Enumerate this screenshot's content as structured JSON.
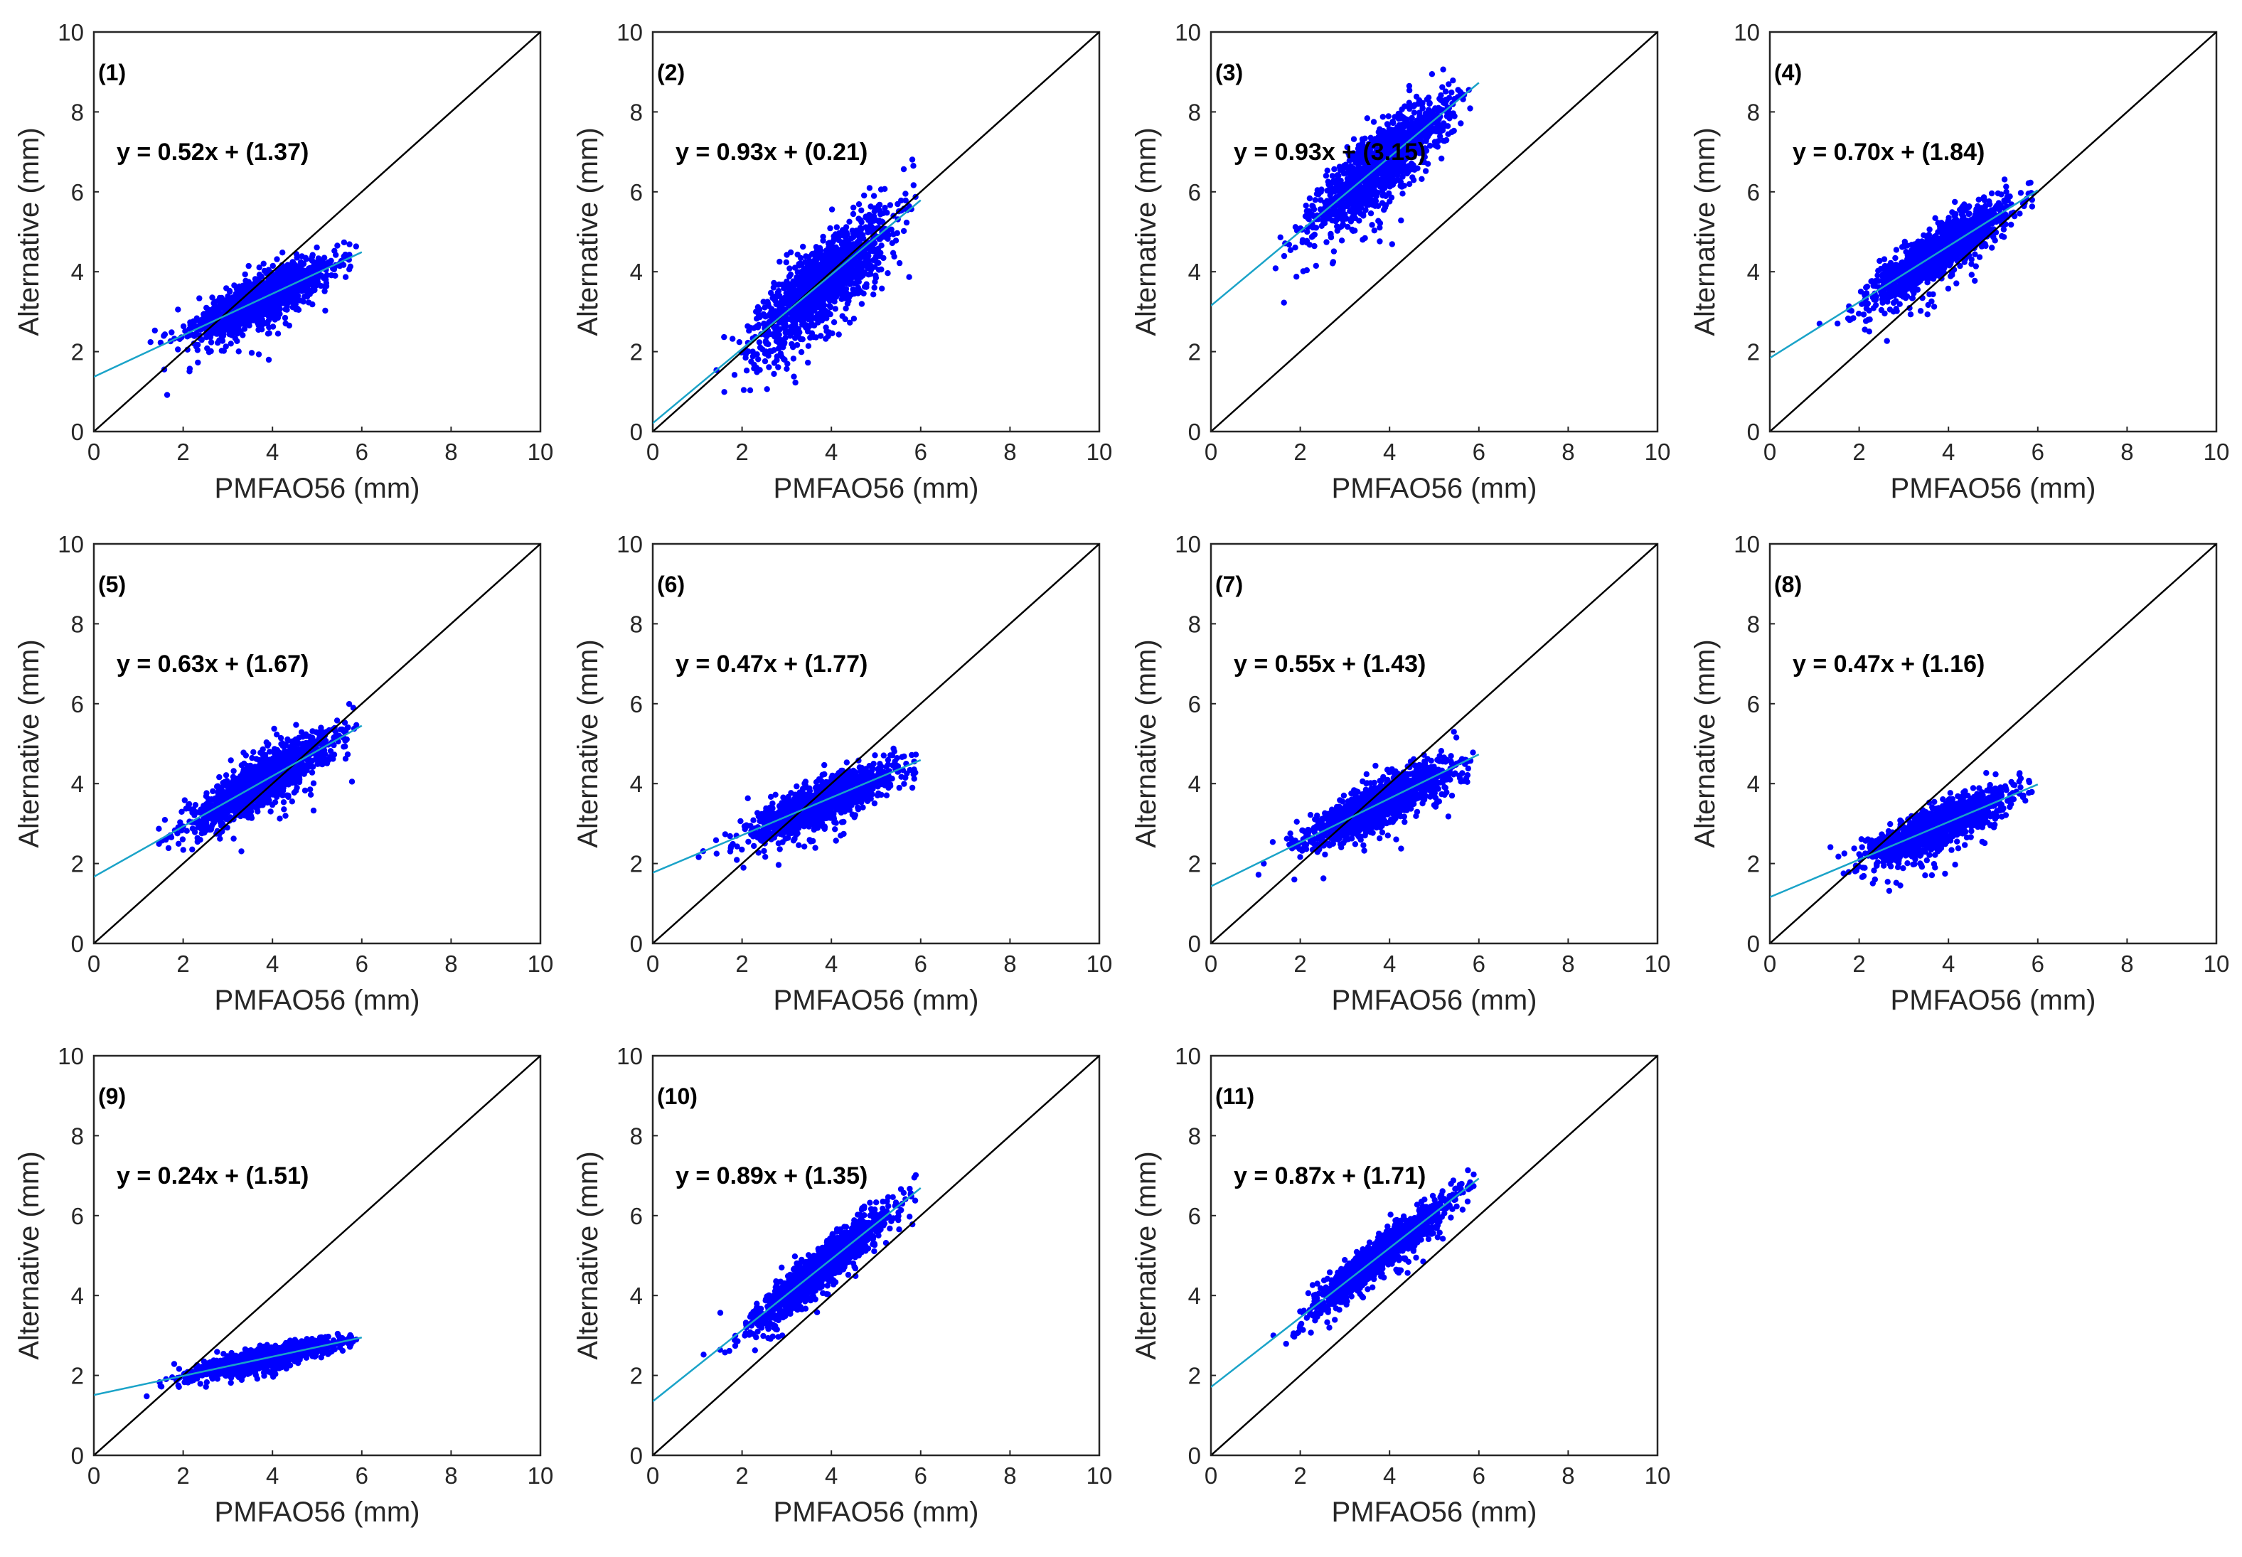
{
  "colors": {
    "points": "#0000ff",
    "fit_line": "#1aa3c8",
    "identity_line": "#000000",
    "axes": "#262626",
    "background": "#ffffff"
  },
  "chart_data": [
    {
      "type": "scatter",
      "panel": "(1)",
      "equation": "y = 0.52x + (1.37)",
      "slope": 0.52,
      "intercept": 1.37,
      "xlabel": "PMFAO56 (mm)",
      "ylabel": "Alternative (mm)",
      "xlim": [
        0,
        10
      ],
      "ylim": [
        0,
        10
      ],
      "xticks": [
        "0",
        "2",
        "4",
        "6",
        "8",
        "10"
      ],
      "yticks": [
        "0",
        "2",
        "4",
        "6",
        "8",
        "10"
      ],
      "cloud": {
        "x_range": [
          1.0,
          5.9
        ],
        "center": [
          3.8,
          3.3
        ],
        "spread": 0.45
      },
      "reference_line": "y = x"
    },
    {
      "type": "scatter",
      "panel": "(2)",
      "equation": "y = 0.93x + (0.21)",
      "slope": 0.93,
      "intercept": 0.21,
      "xlabel": "PMFAO56 (mm)",
      "ylabel": "Alternative (mm)",
      "xlim": [
        0,
        10
      ],
      "ylim": [
        0,
        10
      ],
      "xticks": [
        "0",
        "2",
        "4",
        "6",
        "8",
        "10"
      ],
      "yticks": [
        "0",
        "2",
        "4",
        "6",
        "8",
        "10"
      ],
      "cloud": {
        "x_range": [
          1.0,
          5.9
        ],
        "center": [
          3.8,
          3.7
        ],
        "spread": 0.8
      },
      "reference_line": "y = x"
    },
    {
      "type": "scatter",
      "panel": "(3)",
      "equation": "y = 0.93x + (3.15)",
      "slope": 0.93,
      "intercept": 3.15,
      "xlabel": "PMFAO56 (mm)",
      "ylabel": "Alternative (mm)",
      "xlim": [
        0,
        10
      ],
      "ylim": [
        0,
        10
      ],
      "xticks": [
        "0",
        "2",
        "4",
        "6",
        "8",
        "10"
      ],
      "yticks": [
        "0",
        "2",
        "4",
        "6",
        "8",
        "10"
      ],
      "cloud": {
        "x_range": [
          1.0,
          5.9
        ],
        "center": [
          3.8,
          6.6
        ],
        "spread": 0.7
      },
      "reference_line": "y = x"
    },
    {
      "type": "scatter",
      "panel": "(4)",
      "equation": "y = 0.70x + (1.84)",
      "slope": 0.7,
      "intercept": 1.84,
      "xlabel": "PMFAO56 (mm)",
      "ylabel": "Alternative (mm)",
      "xlim": [
        0,
        10
      ],
      "ylim": [
        0,
        10
      ],
      "xticks": [
        "0",
        "2",
        "4",
        "6",
        "8",
        "10"
      ],
      "yticks": [
        "0",
        "2",
        "4",
        "6",
        "8",
        "10"
      ],
      "cloud": {
        "x_range": [
          1.0,
          5.9
        ],
        "center": [
          3.8,
          4.5
        ],
        "spread": 0.5
      },
      "reference_line": "y = x"
    },
    {
      "type": "scatter",
      "panel": "(5)",
      "equation": "y = 0.63x + (1.67)",
      "slope": 0.63,
      "intercept": 1.67,
      "xlabel": "PMFAO56 (mm)",
      "ylabel": "Alternative (mm)",
      "xlim": [
        0,
        10
      ],
      "ylim": [
        0,
        10
      ],
      "xticks": [
        "0",
        "2",
        "4",
        "6",
        "8",
        "10"
      ],
      "yticks": [
        "0",
        "2",
        "4",
        "6",
        "8",
        "10"
      ],
      "cloud": {
        "x_range": [
          1.0,
          5.9
        ],
        "center": [
          3.8,
          4.0
        ],
        "spread": 0.5
      },
      "reference_line": "y = x"
    },
    {
      "type": "scatter",
      "panel": "(6)",
      "equation": "y = 0.47x + (1.77)",
      "slope": 0.47,
      "intercept": 1.77,
      "xlabel": "PMFAO56 (mm)",
      "ylabel": "Alternative (mm)",
      "xlim": [
        0,
        10
      ],
      "ylim": [
        0,
        10
      ],
      "xticks": [
        "0",
        "2",
        "4",
        "6",
        "8",
        "10"
      ],
      "yticks": [
        "0",
        "2",
        "4",
        "6",
        "8",
        "10"
      ],
      "cloud": {
        "x_range": [
          1.0,
          5.9
        ],
        "center": [
          3.8,
          3.5
        ],
        "spread": 0.4
      },
      "reference_line": "y = x"
    },
    {
      "type": "scatter",
      "panel": "(7)",
      "equation": "y = 0.55x + (1.43)",
      "slope": 0.55,
      "intercept": 1.43,
      "xlabel": "PMFAO56 (mm)",
      "ylabel": "Alternative (mm)",
      "xlim": [
        0,
        10
      ],
      "ylim": [
        0,
        10
      ],
      "xticks": [
        "0",
        "2",
        "4",
        "6",
        "8",
        "10"
      ],
      "yticks": [
        "0",
        "2",
        "4",
        "6",
        "8",
        "10"
      ],
      "cloud": {
        "x_range": [
          1.0,
          5.9
        ],
        "center": [
          3.8,
          3.5
        ],
        "spread": 0.45
      },
      "reference_line": "y = x"
    },
    {
      "type": "scatter",
      "panel": "(8)",
      "equation": "y = 0.47x + (1.16)",
      "slope": 0.47,
      "intercept": 1.16,
      "xlabel": "PMFAO56 (mm)",
      "ylabel": "Alternative (mm)",
      "xlim": [
        0,
        10
      ],
      "ylim": [
        0,
        10
      ],
      "xticks": [
        "0",
        "2",
        "4",
        "6",
        "8",
        "10"
      ],
      "yticks": [
        "0",
        "2",
        "4",
        "6",
        "8",
        "10"
      ],
      "cloud": {
        "x_range": [
          1.0,
          5.9
        ],
        "center": [
          3.8,
          2.9
        ],
        "spread": 0.4
      },
      "reference_line": "y = x"
    },
    {
      "type": "scatter",
      "panel": "(9)",
      "equation": "y = 0.24x + (1.51)",
      "slope": 0.24,
      "intercept": 1.51,
      "xlabel": "PMFAO56 (mm)",
      "ylabel": "Alternative (mm)",
      "xlim": [
        0,
        10
      ],
      "ylim": [
        0,
        10
      ],
      "xticks": [
        "0",
        "2",
        "4",
        "6",
        "8",
        "10"
      ],
      "yticks": [
        "0",
        "2",
        "4",
        "6",
        "8",
        "10"
      ],
      "cloud": {
        "x_range": [
          1.0,
          5.9
        ],
        "center": [
          3.8,
          2.4
        ],
        "spread": 0.2
      },
      "reference_line": "y = x"
    },
    {
      "type": "scatter",
      "panel": "(10)",
      "equation": "y = 0.89x + (1.35)",
      "slope": 0.89,
      "intercept": 1.35,
      "xlabel": "PMFAO56 (mm)",
      "ylabel": "Alternative (mm)",
      "xlim": [
        0,
        10
      ],
      "ylim": [
        0,
        10
      ],
      "xticks": [
        "0",
        "2",
        "4",
        "6",
        "8",
        "10"
      ],
      "yticks": [
        "0",
        "2",
        "4",
        "6",
        "8",
        "10"
      ],
      "cloud": {
        "x_range": [
          1.0,
          5.9
        ],
        "center": [
          3.8,
          4.7
        ],
        "spread": 0.4
      },
      "reference_line": "y = x"
    },
    {
      "type": "scatter",
      "panel": "(11)",
      "equation": "y = 0.87x + (1.71)",
      "slope": 0.87,
      "intercept": 1.71,
      "xlabel": "PMFAO56 (mm)",
      "ylabel": "Alternative (mm)",
      "xlim": [
        0,
        10
      ],
      "ylim": [
        0,
        10
      ],
      "xticks": [
        "0",
        "2",
        "4",
        "6",
        "8",
        "10"
      ],
      "yticks": [
        "0",
        "2",
        "4",
        "6",
        "8",
        "10"
      ],
      "cloud": {
        "x_range": [
          1.0,
          5.9
        ],
        "center": [
          3.8,
          5.0
        ],
        "spread": 0.35
      },
      "reference_line": "y = x"
    }
  ]
}
